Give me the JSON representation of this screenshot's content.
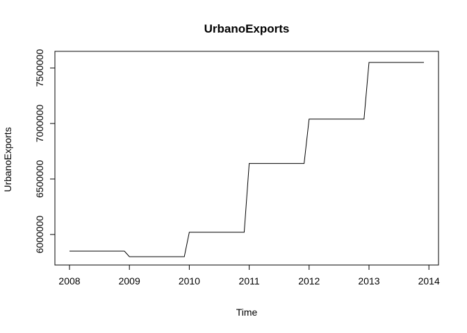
{
  "chart_data": {
    "type": "line",
    "title": "UrbanoExports",
    "xlabel": "Time",
    "ylabel": "UrbanoExports",
    "xlim": [
      2008.0,
      2013.9167
    ],
    "ylim": [
      5800000,
      7550000
    ],
    "x_ticks": [
      2008,
      2009,
      2010,
      2011,
      2012,
      2013,
      2014
    ],
    "x_tick_labels": [
      "2008",
      "2009",
      "2010",
      "2011",
      "2012",
      "2013",
      "2014"
    ],
    "y_ticks": [
      6000000,
      6500000,
      7000000,
      7500000
    ],
    "y_tick_labels": [
      "6000000",
      "6500000",
      "7000000",
      "7500000"
    ],
    "series": [
      {
        "name": "UrbanoExports",
        "color": "#000000",
        "x": [
          2008.0,
          2008.9167,
          2009.0,
          2009.9167,
          2010.0,
          2010.9167,
          2011.0,
          2011.9167,
          2012.0,
          2012.9167,
          2013.0,
          2013.9167
        ],
        "y": [
          5850000,
          5850000,
          5800000,
          5800000,
          6020000,
          6020000,
          6640000,
          6640000,
          7040000,
          7040000,
          7550000,
          7550000
        ]
      }
    ]
  }
}
